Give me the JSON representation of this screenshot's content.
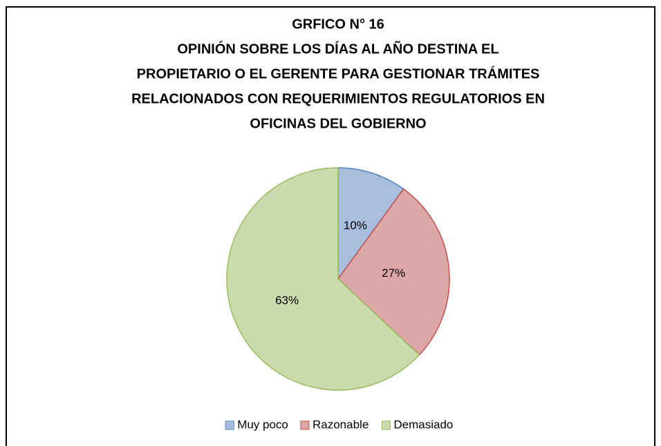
{
  "chart_data": {
    "type": "pie",
    "title": [
      "GRFICO N° 16",
      "OPINIÓN  SOBRE LOS DÍAS AL AÑO DESTINA EL",
      "PROPIETARIO O EL GERENTE PARA GESTIONAR TRÁMITES",
      "RELACIONADOS CON REQUERIMIENTOS REGULATORIOS EN",
      "OFICINAS DEL GOBIERNO"
    ],
    "categories": [
      "Muy poco",
      "Razonable",
      "Demasiado"
    ],
    "values": [
      10,
      27,
      63
    ],
    "value_labels": [
      "10%",
      "27%",
      "63%"
    ],
    "colors": [
      "#a9bddd",
      "#dca7a6",
      "#cadcad"
    ],
    "edge_colors": [
      "#4f81bd",
      "#c0504d",
      "#9bbb59"
    ],
    "legend": "bottom"
  }
}
